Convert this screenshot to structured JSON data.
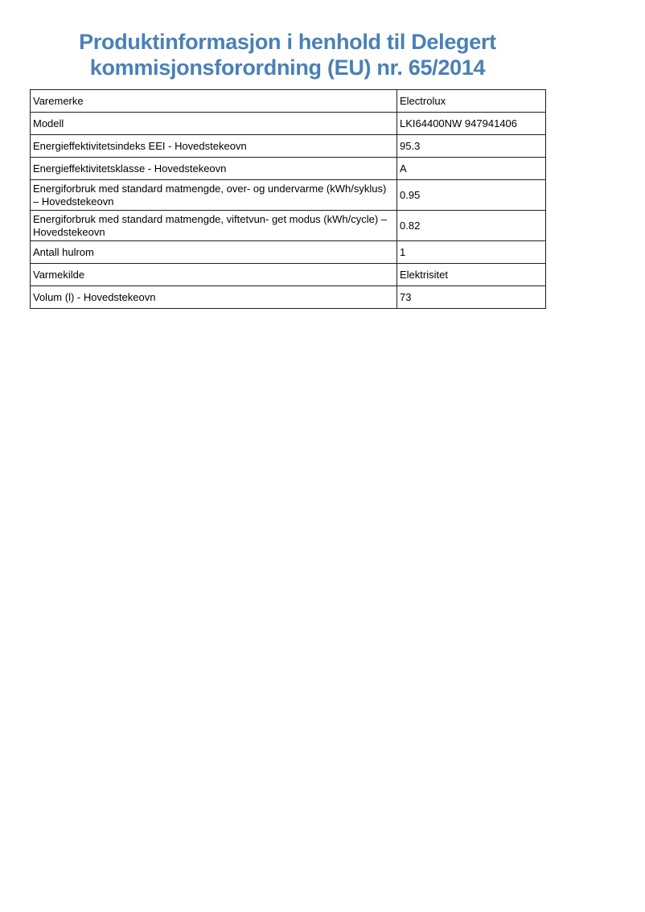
{
  "accent_color": "#4a80b6",
  "title": {
    "line1": "Produktinformasjon i henhold til Delegert",
    "line2": "kommisjonsforordning (EU) nr. 65/2014"
  },
  "table": {
    "rows": [
      {
        "label": "Varemerke",
        "value": "Electrolux"
      },
      {
        "label": "Modell",
        "value": "LKI64400NW 947941406"
      },
      {
        "label": "Energieffektivitetsindeks EEI - Hovedstekeovn",
        "value": "95.3"
      },
      {
        "label": "Energieffektivitetsklasse - Hovedstekeovn",
        "value": "A"
      },
      {
        "label": "Energiforbruk med standard matmengde, over- og undervarme (kWh/syklus) – Hovedstekeovn",
        "value": "0.95"
      },
      {
        "label": "Energiforbruk med standard matmengde, viftetvun- get modus (kWh/cycle) – Hovedstekeovn",
        "value": "0.82"
      },
      {
        "label": "Antall hulrom",
        "value": "1"
      },
      {
        "label": "Varmekilde",
        "value": "Elektrisitet"
      },
      {
        "label": "Volum (l) - Hovedstekeovn",
        "value": "73"
      }
    ]
  }
}
